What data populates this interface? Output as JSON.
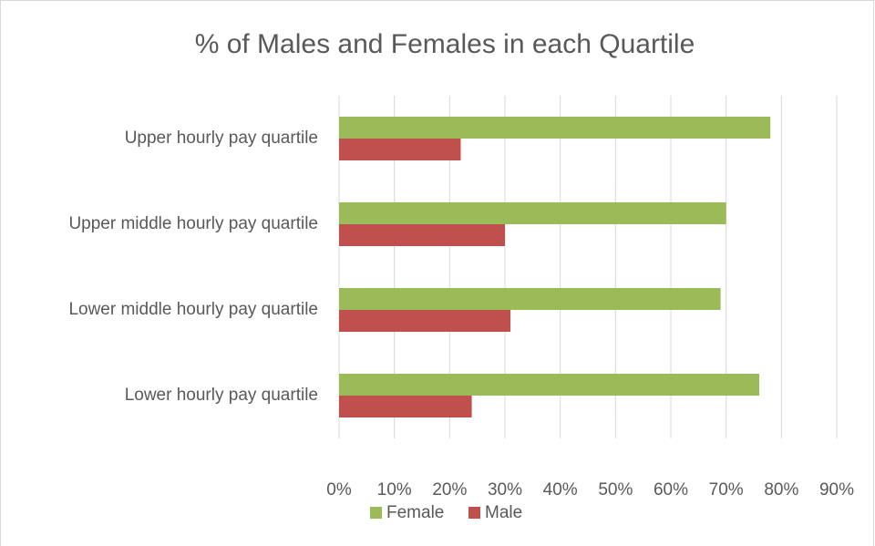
{
  "chart_data": {
    "type": "bar",
    "orientation": "horizontal",
    "title": "% of Males and Females in each Quartile",
    "categories": [
      "Upper hourly pay quartile",
      "Upper middle hourly pay quartile",
      "Lower middle hourly pay quartile",
      "Lower hourly pay quartile"
    ],
    "series": [
      {
        "name": "Female",
        "color": "#9bbb59",
        "values": [
          78,
          70,
          69,
          76
        ]
      },
      {
        "name": "Male",
        "color": "#c0504d",
        "values": [
          22,
          30,
          31,
          24
        ]
      }
    ],
    "xlim": [
      0,
      90
    ],
    "xticks": [
      {
        "value": 0,
        "label": "0%"
      },
      {
        "value": 10,
        "label": "10%"
      },
      {
        "value": 20,
        "label": "20%"
      },
      {
        "value": 30,
        "label": "30%"
      },
      {
        "value": 40,
        "label": "40%"
      },
      {
        "value": 50,
        "label": "50%"
      },
      {
        "value": 60,
        "label": "60%"
      },
      {
        "value": 70,
        "label": "70%"
      },
      {
        "value": 80,
        "label": "80%"
      },
      {
        "value": 90,
        "label": "90%"
      }
    ],
    "grid": true,
    "legend": "bottom"
  }
}
